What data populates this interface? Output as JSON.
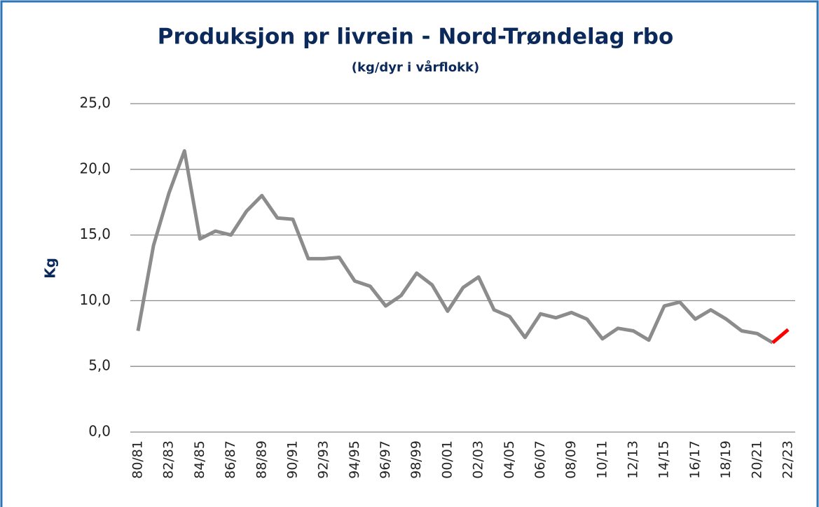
{
  "chart_data": {
    "type": "line",
    "title": "Produksjon pr livrein - Nord-Trøndelag rbo",
    "subtitle": "(kg/dyr i vårflokk)",
    "y_label": "Kg",
    "categories": [
      "80/81",
      null,
      "82/83",
      null,
      "84/85",
      null,
      "86/87",
      null,
      "88/89",
      null,
      "90/91",
      null,
      "92/93",
      null,
      "94/95",
      null,
      "96/97",
      null,
      "98/99",
      null,
      "00/01",
      null,
      "02/03",
      null,
      "04/05",
      null,
      "06/07",
      null,
      "08/09",
      null,
      "10/11",
      null,
      "12/13",
      null,
      "14/15",
      null,
      "16/17",
      null,
      "18/19",
      null,
      "20/21",
      null,
      "22/23"
    ],
    "series": [
      {
        "color": "#8c8c8c",
        "values": [
          7.7,
          14.2,
          18.2,
          21.4,
          14.7,
          15.3,
          15.0,
          16.8,
          18.0,
          16.3,
          16.2,
          13.2,
          13.2,
          13.3,
          11.5,
          11.1,
          9.6,
          10.4,
          12.1,
          11.2,
          9.2,
          11.0,
          11.8,
          9.3,
          8.8,
          7.2,
          9.0,
          8.7,
          9.1,
          8.6,
          7.1,
          7.9,
          7.7,
          7.0,
          9.6,
          9.9,
          8.6,
          9.3,
          8.6,
          7.7,
          7.5,
          6.8,
          null
        ]
      },
      {
        "color": "#ff0000",
        "values": [
          null,
          null,
          null,
          null,
          null,
          null,
          null,
          null,
          null,
          null,
          null,
          null,
          null,
          null,
          null,
          null,
          null,
          null,
          null,
          null,
          null,
          null,
          null,
          null,
          null,
          null,
          null,
          null,
          null,
          null,
          null,
          null,
          null,
          null,
          null,
          null,
          null,
          null,
          null,
          null,
          null,
          6.8,
          7.8
        ]
      }
    ],
    "ylim": [
      0,
      25
    ],
    "yticks": [
      {
        "value": 0,
        "label": "0,0"
      },
      {
        "value": 5,
        "label": "5,0"
      },
      {
        "value": 10,
        "label": "10,0"
      },
      {
        "value": 15,
        "label": "15,0"
      },
      {
        "value": 20,
        "label": "20,0"
      },
      {
        "value": 25,
        "label": "25,0"
      }
    ],
    "grid": true
  }
}
